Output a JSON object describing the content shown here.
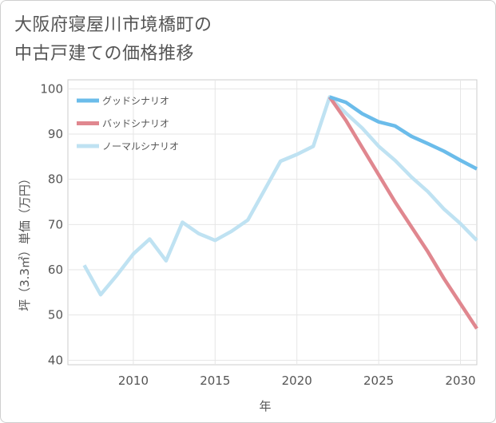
{
  "title_lines": [
    "大阪府寝屋川市境橋町の",
    "中古戸建ての価格推移"
  ],
  "chart_data": {
    "type": "line",
    "title": "大阪府寝屋川市境橋町の中古戸建ての価格推移",
    "xlabel": "年",
    "ylabel": "坪（3.3㎡）単価（万円）",
    "xlim": [
      2006,
      2031
    ],
    "ylim": [
      39,
      102
    ],
    "xticks": [
      2010,
      2015,
      2020,
      2025,
      2030
    ],
    "yticks": [
      40,
      50,
      60,
      70,
      80,
      90,
      100
    ],
    "grid": true,
    "legend_position": "top-left",
    "series": [
      {
        "name": "グッドシナリオ",
        "color": "#6bbcea",
        "x": [
          2022,
          2023,
          2024,
          2025,
          2026,
          2027,
          2028,
          2029,
          2030,
          2031
        ],
        "y": [
          98.2,
          97.0,
          94.5,
          92.7,
          91.8,
          89.5,
          87.9,
          86.2,
          84.2,
          82.3
        ]
      },
      {
        "name": "バッドシナリオ",
        "color": "#e0878f",
        "x": [
          2022,
          2023,
          2024,
          2025,
          2026,
          2027,
          2028,
          2029,
          2030,
          2031
        ],
        "y": [
          98.2,
          93.0,
          87.0,
          81.0,
          75.0,
          69.5,
          64.0,
          58.0,
          52.5,
          47.0
        ]
      },
      {
        "name": "ノーマルシナリオ",
        "color": "#bfe2f2",
        "x": [
          2007,
          2008,
          2009,
          2010,
          2011,
          2012,
          2013,
          2014,
          2015,
          2016,
          2017,
          2018,
          2019,
          2020,
          2021,
          2022,
          2023,
          2024,
          2025,
          2026,
          2027,
          2028,
          2029,
          2030,
          2031
        ],
        "y": [
          61.0,
          54.5,
          58.8,
          63.5,
          66.8,
          62.0,
          70.5,
          68.0,
          66.5,
          68.5,
          71.0,
          77.5,
          84.0,
          85.5,
          87.3,
          98.2,
          94.6,
          91.3,
          87.3,
          84.2,
          80.5,
          77.3,
          73.4,
          70.2,
          66.5
        ]
      }
    ]
  }
}
